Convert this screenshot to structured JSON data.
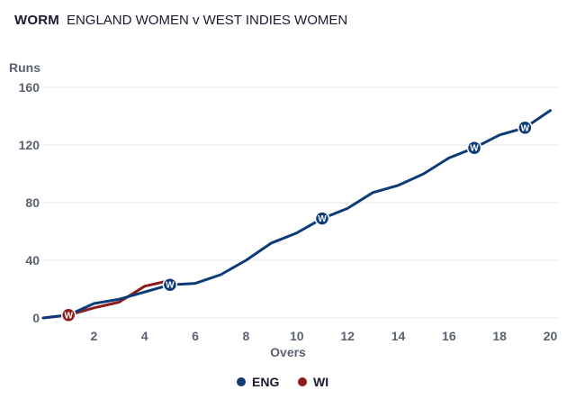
{
  "header": {
    "tag": "WORM",
    "title": "ENGLAND WOMEN v WEST INDIES WOMEN"
  },
  "chart_data": {
    "type": "line",
    "title": "ENGLAND WOMEN v WEST INDIES WOMEN",
    "xlabel": "Overs",
    "ylabel": "Runs",
    "xlim": [
      0,
      20.3
    ],
    "ylim": [
      0,
      160
    ],
    "x_ticks": [
      "2",
      "4",
      "6",
      "8",
      "10",
      "12",
      "14",
      "16",
      "18",
      "20"
    ],
    "y_ticks": [
      "0",
      "40",
      "80",
      "120",
      "160"
    ],
    "wicket_marker_label": "W",
    "grid": true,
    "legend_position": "bottom-center",
    "series": [
      {
        "name": "ENG",
        "color": "#0d3b7a",
        "points": [
          [
            0,
            0
          ],
          [
            1,
            2
          ],
          [
            2,
            10
          ],
          [
            3,
            13
          ],
          [
            4,
            18
          ],
          [
            5,
            23
          ],
          [
            6,
            24
          ],
          [
            7,
            30
          ],
          [
            8,
            40
          ],
          [
            9,
            52
          ],
          [
            10,
            59
          ],
          [
            11,
            69
          ],
          [
            12,
            76
          ],
          [
            13,
            87
          ],
          [
            14,
            92
          ],
          [
            15,
            100
          ],
          [
            16,
            111
          ],
          [
            17,
            118
          ],
          [
            18,
            127
          ],
          [
            19,
            132
          ],
          [
            20,
            144
          ]
        ],
        "wickets": [
          [
            5,
            23
          ],
          [
            11,
            69
          ],
          [
            17,
            118
          ],
          [
            19,
            132
          ]
        ]
      },
      {
        "name": "WI",
        "color": "#8b1c1c",
        "points": [
          [
            0,
            0
          ],
          [
            1,
            2
          ],
          [
            2,
            7
          ],
          [
            3,
            11
          ],
          [
            4,
            22
          ],
          [
            5,
            26
          ]
        ],
        "wickets": [
          [
            1,
            2
          ]
        ]
      }
    ]
  }
}
